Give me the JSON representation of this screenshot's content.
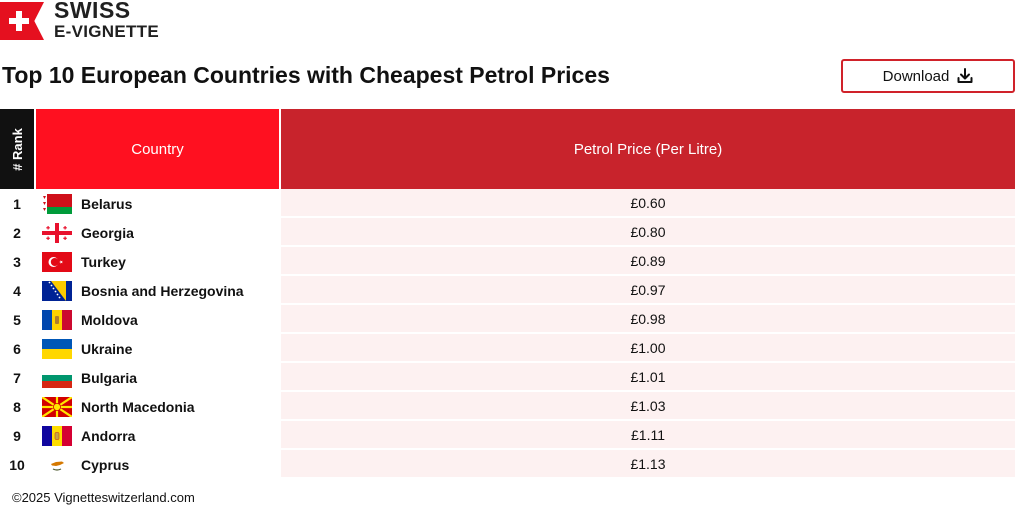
{
  "brand": {
    "line1": "SWISS",
    "line2": "E-VIGNETTE",
    "color": "#e5101f"
  },
  "title": "Top 10 European Countries with Cheapest Petrol Prices",
  "download": {
    "label": "Download",
    "icon": "download-icon"
  },
  "table": {
    "headers": {
      "rank": "# Rank",
      "country": "Country",
      "price": "Petrol Price (Per Litre)"
    },
    "rows": [
      {
        "rank": "1",
        "country": "Belarus",
        "flag": "belarus-flag-icon",
        "price": "£0.60"
      },
      {
        "rank": "2",
        "country": "Georgia",
        "flag": "georgia-flag-icon",
        "price": "£0.80"
      },
      {
        "rank": "3",
        "country": "Turkey",
        "flag": "turkey-flag-icon",
        "price": "£0.89"
      },
      {
        "rank": "4",
        "country": "Bosnia and Herzegovina",
        "flag": "bosnia-flag-icon",
        "price": "£0.97"
      },
      {
        "rank": "5",
        "country": "Moldova",
        "flag": "moldova-flag-icon",
        "price": "£0.98"
      },
      {
        "rank": "6",
        "country": "Ukraine",
        "flag": "ukraine-flag-icon",
        "price": "£1.00"
      },
      {
        "rank": "7",
        "country": "Bulgaria",
        "flag": "bulgaria-flag-icon",
        "price": "£1.01"
      },
      {
        "rank": "8",
        "country": "North Macedonia",
        "flag": "north-macedonia-flag-icon",
        "price": "£1.03"
      },
      {
        "rank": "9",
        "country": "Andorra",
        "flag": "andorra-flag-icon",
        "price": "£1.11"
      },
      {
        "rank": "10",
        "country": "Cyprus",
        "flag": "cyprus-flag-icon",
        "price": "£1.13"
      }
    ]
  },
  "footer": "©2025 Vignetteswitzerland.com"
}
